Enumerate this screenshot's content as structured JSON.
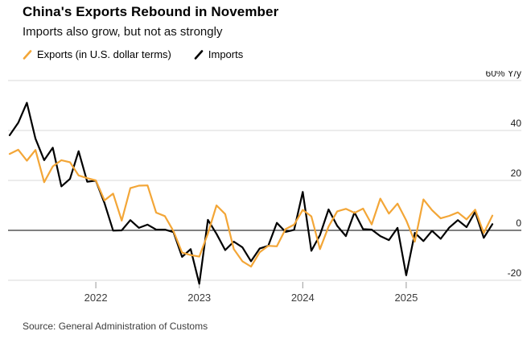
{
  "header": {
    "title": "China's Exports Rebound in November",
    "subtitle": "Imports also grow, but not as strongly"
  },
  "legend": [
    {
      "label": "Exports (in U.S. dollar terms)",
      "color": "#f3a637"
    },
    {
      "label": "Imports",
      "color": "#000000"
    }
  ],
  "source": "Source: General Administration of Customs",
  "chart_data": {
    "type": "line",
    "x_unit": "month",
    "title": "China's Exports Rebound in November",
    "subtitle": "Imports also grow, but not as strongly",
    "ylabel": "% Y/y",
    "ylim": [
      -25,
      62
    ],
    "grid": "horizontal",
    "legend_position": "top-left",
    "grid_color": "#d9d9d9",
    "zero_line_color": "#000000",
    "months": [
      "2021-03",
      "2021-04",
      "2021-05",
      "2021-06",
      "2021-07",
      "2021-08",
      "2021-09",
      "2021-10",
      "2021-11",
      "2021-12",
      "2022-01",
      "2022-02",
      "2022-03",
      "2022-04",
      "2022-05",
      "2022-06",
      "2022-07",
      "2022-08",
      "2022-09",
      "2022-10",
      "2022-11",
      "2022-12",
      "2023-01",
      "2023-02",
      "2023-03",
      "2023-04",
      "2023-05",
      "2023-06",
      "2023-07",
      "2023-08",
      "2023-09",
      "2023-10",
      "2023-11",
      "2023-12",
      "2024-01",
      "2024-02",
      "2024-03",
      "2024-04",
      "2024-05",
      "2024-06",
      "2024-07",
      "2024-08",
      "2024-09",
      "2024-10",
      "2024-11",
      "2024-12",
      "2025-01",
      "2025-02",
      "2025-03",
      "2025-04",
      "2025-05",
      "2025-06",
      "2025-07",
      "2025-08",
      "2025-09",
      "2025-10",
      "2025-11"
    ],
    "series": [
      {
        "name": "Exports (in U.S. dollar terms)",
        "color": "#f3a637",
        "values": [
          30.6,
          32.3,
          27.9,
          32.2,
          19.3,
          25.6,
          28.1,
          27.3,
          22.0,
          20.9,
          20.0,
          12.0,
          14.7,
          3.9,
          16.9,
          17.9,
          18.0,
          7.1,
          5.7,
          -0.3,
          -8.9,
          -9.9,
          -10.5,
          -1.3,
          10.0,
          6.5,
          -7.5,
          -12.4,
          -14.5,
          -8.8,
          -6.2,
          -6.4,
          0.5,
          2.3,
          8.2,
          5.6,
          -7.5,
          1.5,
          7.6,
          8.6,
          7.0,
          8.7,
          2.4,
          12.7,
          6.7,
          10.7,
          4.0,
          -4.5,
          12.4,
          8.1,
          4.8,
          5.8,
          7.2,
          4.4,
          8.3,
          -1.1,
          5.9
        ]
      },
      {
        "name": "Imports",
        "color": "#000000",
        "values": [
          38.1,
          43.1,
          51.1,
          36.7,
          28.1,
          33.1,
          17.6,
          20.6,
          31.7,
          19.5,
          19.9,
          10.9,
          -0.1,
          0.0,
          4.1,
          1.0,
          2.3,
          0.3,
          0.3,
          -0.7,
          -10.6,
          -7.5,
          -21.4,
          4.2,
          -1.4,
          -7.9,
          -4.5,
          -6.8,
          -12.4,
          -7.3,
          -6.2,
          3.0,
          -0.6,
          0.2,
          15.4,
          -8.2,
          -1.9,
          8.4,
          1.8,
          -2.3,
          7.2,
          0.5,
          0.3,
          -2.3,
          -3.9,
          1.0,
          -18.0,
          -1.0,
          -4.3,
          -0.2,
          -3.4,
          1.1,
          4.1,
          1.3,
          7.4,
          -3.0,
          2.5
        ]
      }
    ],
    "y_ticks": [
      {
        "value": 60,
        "label": "60% Y/y"
      },
      {
        "value": 40,
        "label": "40"
      },
      {
        "value": 20,
        "label": "20"
      },
      {
        "value": 0,
        "label": "0"
      },
      {
        "value": -20,
        "label": "-20"
      }
    ],
    "x_ticks": [
      {
        "month": "2022-01",
        "label": "2022"
      },
      {
        "month": "2023-01",
        "label": "2023"
      },
      {
        "month": "2024-01",
        "label": "2024"
      },
      {
        "month": "2025-01",
        "label": "2025"
      }
    ]
  }
}
